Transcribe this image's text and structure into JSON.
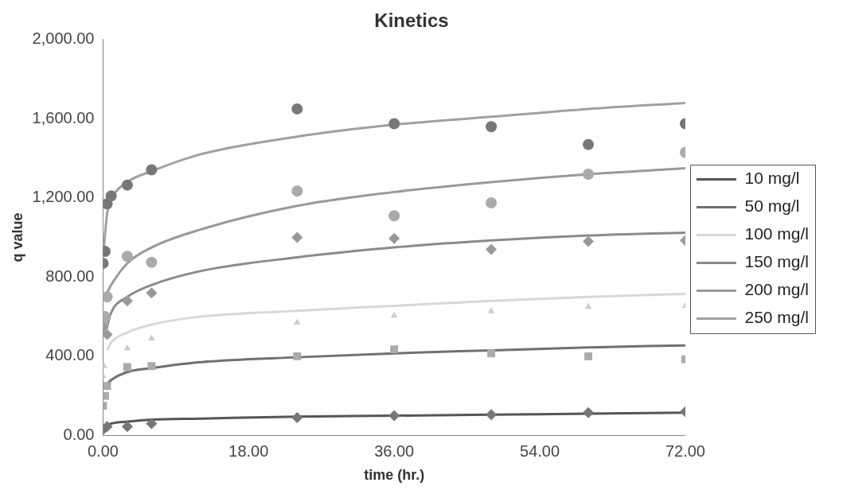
{
  "chart_data": {
    "type": "scatter",
    "title": "Kinetics",
    "xlabel": "time (hr.)",
    "ylabel": "q value",
    "xlim": [
      0,
      72
    ],
    "xticks": [
      {
        "value": 0,
        "label": "0.00"
      },
      {
        "value": 18,
        "label": "18.00"
      },
      {
        "value": 36,
        "label": "36.00"
      },
      {
        "value": 54,
        "label": "54.00"
      },
      {
        "value": 72,
        "label": "72.00"
      }
    ],
    "ylim": [
      0,
      2000
    ],
    "yticks": [
      {
        "value": 0,
        "label": "0.00"
      },
      {
        "value": 400,
        "label": "400.00"
      },
      {
        "value": 800,
        "label": "800.00"
      },
      {
        "value": 1200,
        "label": "1,200.00"
      },
      {
        "value": 1600,
        "label": "1,600.00"
      },
      {
        "value": 2000,
        "label": "2,000.00"
      }
    ],
    "grid": false,
    "legend": "right",
    "series": [
      {
        "name": "10 mg/l",
        "type": "line",
        "color": "#555555",
        "marker": "none",
        "x": [
          0.5,
          1,
          3,
          6,
          12,
          24,
          36,
          48,
          60,
          72
        ],
        "values": [
          50,
          60,
          70,
          80,
          85,
          95,
          100,
          105,
          110,
          115
        ]
      },
      {
        "name": "50 mg/l",
        "type": "line",
        "color": "#707070",
        "marker": "none",
        "x": [
          0.5,
          1,
          3,
          6,
          12,
          24,
          36,
          48,
          60,
          72
        ],
        "values": [
          260,
          280,
          320,
          340,
          370,
          395,
          415,
          430,
          445,
          455
        ]
      },
      {
        "name": "100 mg/l",
        "type": "line",
        "color": "#d8d8d8",
        "marker": "none",
        "x": [
          0.5,
          1,
          3,
          6,
          12,
          24,
          36,
          48,
          60,
          72
        ],
        "values": [
          430,
          470,
          520,
          560,
          600,
          630,
          655,
          680,
          700,
          715
        ]
      },
      {
        "name": "150 mg/l",
        "type": "line",
        "color": "#8a8a8a",
        "marker": "none",
        "x": [
          0.3,
          1,
          3,
          6,
          12,
          24,
          36,
          48,
          60,
          72
        ],
        "values": [
          520,
          620,
          700,
          760,
          830,
          900,
          950,
          985,
          1010,
          1025
        ]
      },
      {
        "name": "200 mg/l",
        "type": "line",
        "color": "#999999",
        "marker": "none",
        "x": [
          0.5,
          1,
          3,
          6,
          12,
          24,
          36,
          48,
          60,
          72
        ],
        "values": [
          720,
          760,
          870,
          950,
          1040,
          1160,
          1230,
          1280,
          1320,
          1350
        ]
      },
      {
        "name": "250 mg/l",
        "type": "line",
        "color": "#a0a0a0",
        "marker": "none",
        "x": [
          0.1,
          0.5,
          1,
          3,
          6,
          12,
          24,
          36,
          48,
          60,
          72
        ],
        "values": [
          950,
          1120,
          1190,
          1280,
          1335,
          1420,
          1510,
          1570,
          1610,
          1650,
          1680
        ]
      },
      {
        "type": "scatter",
        "color": "#777777",
        "marker": "diamond",
        "x": [
          0,
          0.5,
          3,
          6,
          24,
          36,
          48,
          60,
          72
        ],
        "values": [
          30,
          45,
          45,
          60,
          90,
          100,
          105,
          115,
          120
        ]
      },
      {
        "type": "scatter",
        "color": "#aaaaaa",
        "marker": "square",
        "x": [
          0,
          0.25,
          0.5,
          3,
          6,
          24,
          36,
          48,
          60,
          72
        ],
        "values": [
          150,
          200,
          250,
          345,
          350,
          400,
          435,
          415,
          400,
          385
        ]
      },
      {
        "type": "scatter",
        "color": "#cccccc",
        "marker": "triangle",
        "x": [
          0,
          0.1,
          3,
          6,
          24,
          36,
          48,
          60,
          72
        ],
        "values": [
          300,
          350,
          440,
          490,
          570,
          606,
          628,
          650,
          655
        ]
      },
      {
        "type": "scatter",
        "color": "#999999",
        "marker": "diamond",
        "x": [
          0,
          0.5,
          3,
          6,
          24,
          36,
          48,
          60,
          72
        ],
        "values": [
          550,
          510,
          680,
          720,
          1000,
          995,
          940,
          980,
          985
        ]
      },
      {
        "type": "scatter",
        "color": "#aaaaaa",
        "marker": "circle",
        "x": [
          0,
          0.25,
          0.5,
          3,
          6,
          24,
          36,
          48,
          60,
          72
        ],
        "values": [
          550,
          600,
          700,
          905,
          875,
          1235,
          1110,
          1175,
          1320,
          1430
        ]
      },
      {
        "type": "scatter",
        "color": "#777777",
        "marker": "circle",
        "x": [
          0,
          0.25,
          0.5,
          1,
          3,
          6,
          24,
          36,
          48,
          60,
          72
        ],
        "values": [
          870,
          930,
          1170,
          1210,
          1265,
          1342,
          1650,
          1575,
          1560,
          1470,
          1575
        ]
      }
    ]
  }
}
